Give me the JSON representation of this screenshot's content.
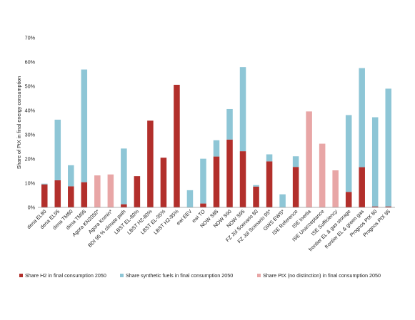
{
  "chart_data": {
    "type": "bar",
    "stacked": true,
    "title": "",
    "xlabel": "",
    "ylabel": "Share of PtX in final energy consumption",
    "ylim": [
      0,
      70
    ],
    "yticks": [
      "0%",
      "10%",
      "20%",
      "30%",
      "40%",
      "50%",
      "60%",
      "70%"
    ],
    "grid": false,
    "legend_position": "bottom",
    "categories": [
      "dena EL80",
      "dena EL95",
      "dena TM80",
      "dena TM95",
      "Agora KN2050*",
      "Agora Knmin*",
      "BDI 95 % climate path",
      "LBST EL-80%",
      "LBST H2-80%",
      "LBST EL-95%",
      "LBST H2-95%",
      "ewi EEV",
      "ewi TO",
      "NOW S85",
      "NOW S90",
      "NOW S95",
      "FZ Jül Scenario 80",
      "FZ Jül Scenario 95*",
      "GWS EWS*",
      "ISE Reference",
      "ISE Inertia",
      "ISE Unacceptance",
      "ISE Sufficiency",
      "frontier EL & gas storage",
      "frontier EL & green gas",
      "Prognos PtX 80",
      "Prognos PtX 95"
    ],
    "series": [
      {
        "name": "Share H2 in final consumption 2050",
        "color": "#b22f2b",
        "values": [
          9.5,
          11.2,
          8.7,
          10.4,
          0,
          0,
          1.3,
          12.9,
          35.8,
          20.5,
          50.6,
          0,
          1.6,
          21.0,
          28.0,
          23.2,
          8.6,
          19.0,
          0,
          16.7,
          0,
          0,
          0,
          6.4,
          16.6,
          0.4,
          0.4
        ]
      },
      {
        "name": "Share synthetic fuels in final consumption 2050",
        "color": "#8ec6d6",
        "values": [
          0.3,
          25.0,
          8.7,
          46.5,
          0,
          0,
          23.0,
          0,
          0,
          0,
          0,
          7.1,
          18.5,
          6.7,
          12.6,
          34.7,
          0.6,
          2.9,
          5.4,
          4.4,
          0,
          0,
          0,
          31.7,
          40.9,
          36.8,
          48.6
        ]
      },
      {
        "name": "Share PtX (no distinction) in final consumption 2050",
        "color": "#e8a6a6",
        "values": [
          0,
          0,
          0,
          0,
          13.2,
          13.6,
          0,
          0,
          0,
          0,
          0,
          0,
          0,
          0,
          0,
          0,
          0,
          0,
          0,
          0,
          39.6,
          26.3,
          15.3,
          0,
          0,
          0,
          0
        ]
      }
    ]
  }
}
